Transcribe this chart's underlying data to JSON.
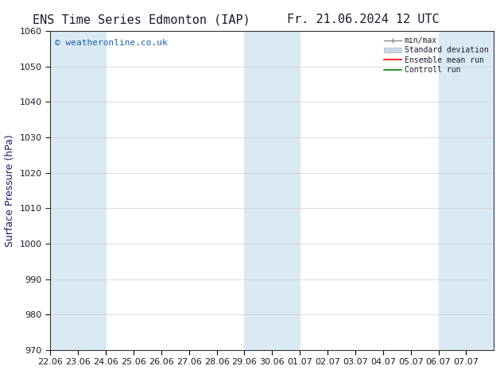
{
  "title_left": "ENS Time Series Edmonton (IAP)",
  "title_right": "Fr. 21.06.2024 12 UTC",
  "ylabel": "Surface Pressure (hPa)",
  "ylim": [
    970,
    1060
  ],
  "yticks": [
    970,
    980,
    990,
    1000,
    1010,
    1020,
    1030,
    1040,
    1050,
    1060
  ],
  "x_labels": [
    "22.06",
    "23.06",
    "24.06",
    "25.06",
    "26.06",
    "27.06",
    "28.06",
    "29.06",
    "30.06",
    "01.07",
    "02.07",
    "03.07",
    "04.07",
    "05.07",
    "06.07",
    "07.07"
  ],
  "shaded_ranges": [
    [
      0,
      2
    ],
    [
      7,
      9
    ],
    [
      14,
      16
    ]
  ],
  "shade_color": "#daeaf5",
  "background_color": "#ffffff",
  "text_color": "#1a1a2e",
  "copyright_text": "© weatheronline.co.uk",
  "copyright_color": "#1a5faa",
  "title_fontsize": 11,
  "axis_label_fontsize": 9,
  "tick_fontsize": 8,
  "ylabel_color": "#1a1a6e",
  "figsize": [
    6.34,
    4.9
  ],
  "dpi": 100
}
